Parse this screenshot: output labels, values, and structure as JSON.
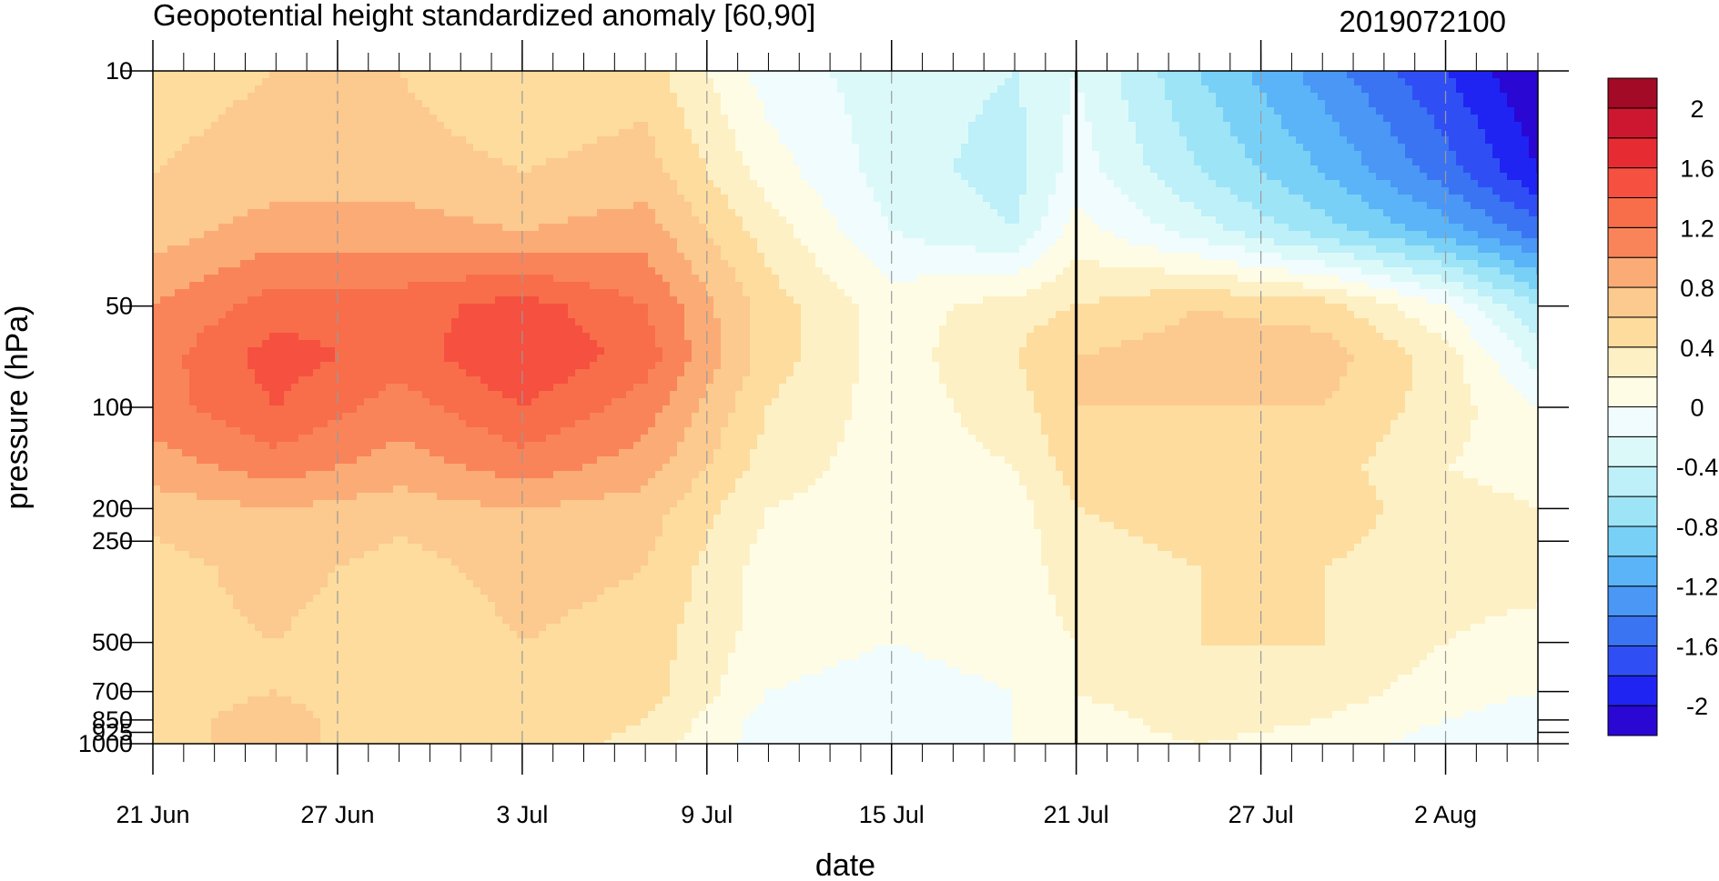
{
  "chart_data": {
    "type": "heatmap",
    "title": "Geopotential height standardized anomaly [60,90]",
    "subtitle": "2019072100",
    "xlabel": "date",
    "ylabel": "pressure (hPa)",
    "x_ticks": [
      {
        "date": "2019-06-21",
        "label": "21 Jun"
      },
      {
        "date": "2019-06-27",
        "label": "27 Jun"
      },
      {
        "date": "2019-07-03",
        "label": "3 Jul"
      },
      {
        "date": "2019-07-09",
        "label": "9 Jul"
      },
      {
        "date": "2019-07-15",
        "label": "15 Jul"
      },
      {
        "date": "2019-07-21",
        "label": "21 Jul"
      },
      {
        "date": "2019-07-27",
        "label": "27 Jul"
      },
      {
        "date": "2019-08-02",
        "label": "2 Aug"
      }
    ],
    "xlim": [
      "2019-06-21",
      "2019-08-05"
    ],
    "y_scale": "log",
    "y_inverted": true,
    "ylim": [
      1000,
      10
    ],
    "y_ticks": [
      {
        "value": 10,
        "label": "10"
      },
      {
        "value": 50,
        "label": "50"
      },
      {
        "value": 100,
        "label": "100"
      },
      {
        "value": 200,
        "label": "200"
      },
      {
        "value": 250,
        "label": "250"
      },
      {
        "value": 500,
        "label": "500"
      },
      {
        "value": 700,
        "label": "700"
      },
      {
        "value": 850,
        "label": "850"
      },
      {
        "value": 925,
        "label": "925"
      },
      {
        "value": 1000,
        "label": "1000"
      }
    ],
    "current_date_marker": "2019-07-21",
    "colorbar": {
      "levels": [
        -2.2,
        -2,
        -1.8,
        -1.6,
        -1.4,
        -1.2,
        -1,
        -0.8,
        -0.6,
        -0.4,
        -0.2,
        0,
        0.2,
        0.4,
        0.6,
        0.8,
        1,
        1.2,
        1.4,
        1.6,
        1.8,
        2,
        2.2
      ],
      "labels": [
        {
          "value": 2,
          "text": "2"
        },
        {
          "value": 1.6,
          "text": "1.6"
        },
        {
          "value": 1.2,
          "text": "1.2"
        },
        {
          "value": 0.8,
          "text": "0.8"
        },
        {
          "value": 0.4,
          "text": "0.4"
        },
        {
          "value": 0,
          "text": "0"
        },
        {
          "value": -0.4,
          "text": "-0.4"
        },
        {
          "value": -0.8,
          "text": "-0.8"
        },
        {
          "value": -1.2,
          "text": "-1.2"
        },
        {
          "value": -1.6,
          "text": "-1.6"
        },
        {
          "value": -2,
          "text": "-2"
        }
      ],
      "colors": [
        "#2a07d3",
        "#1f24f2",
        "#2f4ff5",
        "#3a74f2",
        "#4a97f6",
        "#5ab4f7",
        "#79d0f7",
        "#9ee4f7",
        "#bdf0f8",
        "#dcf9fa",
        "#f0fcfd",
        "#fffce6",
        "#fdf0c4",
        "#fddc9e",
        "#fcc98e",
        "#fbac76",
        "#fa8459",
        "#f86e4a",
        "#f65040",
        "#e62c32",
        "#cd1730",
        "#a20a25"
      ]
    },
    "anomaly_grid": {
      "dates": [
        "2019-06-21",
        "2019-06-25",
        "2019-06-29",
        "2019-07-03",
        "2019-07-07",
        "2019-07-11",
        "2019-07-15",
        "2019-07-19",
        "2019-07-21",
        "2019-07-25",
        "2019-07-29",
        "2019-08-02",
        "2019-08-05"
      ],
      "levels_hPa": [
        10,
        20,
        30,
        50,
        70,
        100,
        150,
        200,
        300,
        500,
        700,
        850,
        1000
      ],
      "values": [
        [
          0.5,
          0.6,
          0.6,
          0.4,
          0.5,
          -0.1,
          -0.3,
          -0.4,
          -0.2,
          -0.8,
          -1.3,
          -1.8,
          -2.2
        ],
        [
          0.6,
          0.7,
          0.7,
          0.6,
          0.7,
          0.1,
          -0.3,
          -0.5,
          -0.1,
          -0.6,
          -1.0,
          -1.5,
          -2.0
        ],
        [
          0.7,
          0.9,
          0.9,
          0.8,
          0.9,
          0.3,
          -0.2,
          -0.4,
          0.1,
          -0.3,
          -0.7,
          -1.1,
          -1.5
        ],
        [
          1.0,
          1.3,
          1.3,
          1.5,
          1.2,
          0.5,
          0.1,
          0.3,
          0.4,
          0.6,
          0.5,
          0.0,
          -0.6
        ],
        [
          1.1,
          1.5,
          1.3,
          1.6,
          1.3,
          0.5,
          0.1,
          0.4,
          0.6,
          0.7,
          0.7,
          0.3,
          -0.3
        ],
        [
          1.1,
          1.4,
          1.1,
          1.4,
          1.1,
          0.4,
          0.1,
          0.3,
          0.6,
          0.6,
          0.6,
          0.3,
          0.0
        ],
        [
          0.9,
          1.1,
          0.9,
          1.1,
          0.9,
          0.3,
          0.1,
          0.2,
          0.5,
          0.6,
          0.5,
          0.2,
          0.1
        ],
        [
          0.7,
          0.8,
          0.7,
          0.8,
          0.7,
          0.2,
          0.1,
          0.1,
          0.4,
          0.5,
          0.5,
          0.3,
          0.2
        ],
        [
          0.5,
          0.7,
          0.5,
          0.7,
          0.6,
          0.1,
          0.0,
          0.1,
          0.3,
          0.4,
          0.4,
          0.3,
          0.3
        ],
        [
          0.5,
          0.6,
          0.4,
          0.6,
          0.5,
          0.1,
          0.0,
          0.1,
          0.2,
          0.4,
          0.4,
          0.2,
          0.1
        ],
        [
          0.5,
          0.6,
          0.4,
          0.6,
          0.5,
          0.0,
          -0.1,
          0.0,
          0.2,
          0.4,
          0.3,
          0.1,
          0.0
        ],
        [
          0.5,
          0.7,
          0.4,
          0.6,
          0.4,
          -0.1,
          -0.1,
          0.0,
          0.1,
          0.3,
          0.2,
          0.0,
          -0.1
        ],
        [
          0.5,
          0.7,
          0.4,
          0.6,
          0.3,
          -0.1,
          -0.1,
          0.0,
          0.1,
          0.2,
          0.1,
          -0.1,
          -0.2
        ]
      ]
    }
  }
}
